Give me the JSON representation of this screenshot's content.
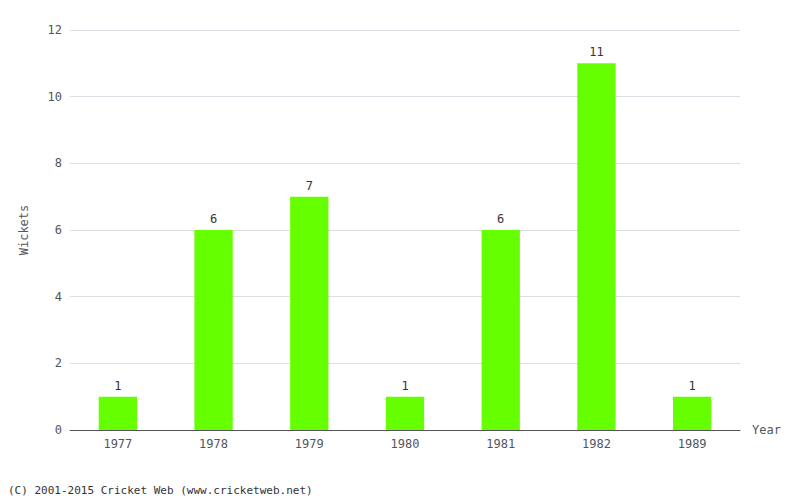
{
  "chart_data": {
    "type": "bar",
    "categories": [
      "1977",
      "1978",
      "1979",
      "1980",
      "1981",
      "1982",
      "1989"
    ],
    "values": [
      1,
      6,
      7,
      1,
      6,
      11,
      1
    ],
    "color": "#66ff00",
    "xlabel": "Year",
    "ylabel": "Wickets",
    "ylim": [
      0,
      12
    ],
    "yticks": [
      0,
      2,
      4,
      6,
      8,
      10,
      12
    ],
    "grid": true,
    "data_labels": true,
    "annotations": [
      "(C) 2001-2015 Cricket Web (www.cricketweb.net)"
    ]
  }
}
